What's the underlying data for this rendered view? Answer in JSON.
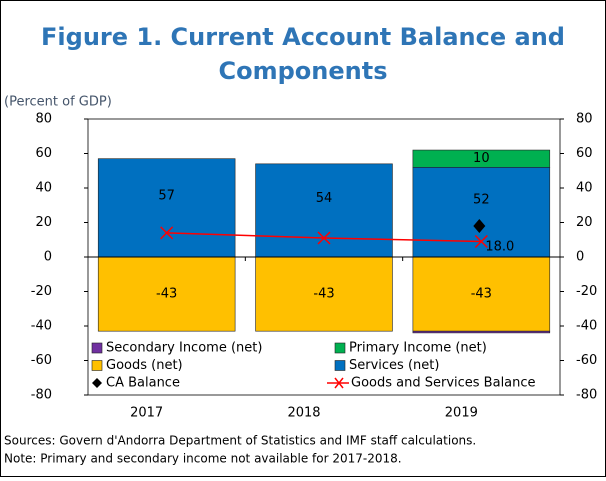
{
  "chart_data": {
    "type": "bar",
    "title": "Figure 1. Current Account Balance and Components",
    "subtitle": "(Percent of GDP)",
    "categories": [
      "2017",
      "2018",
      "2019"
    ],
    "series": [
      {
        "name": "Secondary Income (net)",
        "color": "#7030a0",
        "kind": "bar",
        "values": [
          null,
          null,
          -1
        ]
      },
      {
        "name": "Primary Income (net)",
        "color": "#00b050",
        "kind": "bar",
        "labels": true,
        "values": [
          null,
          null,
          10
        ]
      },
      {
        "name": "Goods (net)",
        "color": "#ffc000",
        "kind": "bar",
        "labels": true,
        "values": [
          -43,
          -43,
          -43
        ]
      },
      {
        "name": "Services (net)",
        "color": "#0070c0",
        "kind": "bar",
        "labels": true,
        "values": [
          57,
          54,
          52
        ]
      },
      {
        "name": "CA Balance",
        "color": "#000000",
        "kind": "marker",
        "values": [
          null,
          null,
          18
        ],
        "value_labels": [
          null,
          null,
          "18.0"
        ]
      },
      {
        "name": "Goods and Services Balance",
        "color": "#ff0000",
        "kind": "line",
        "values": [
          14,
          11,
          9
        ]
      }
    ],
    "ylim": [
      -80,
      80
    ],
    "yticks": [
      -80,
      -60,
      -40,
      -20,
      0,
      20,
      40,
      60,
      80
    ],
    "y2lim": [
      -80,
      80
    ],
    "y2ticks": [
      -80,
      -60,
      -40,
      -20,
      0,
      20,
      40,
      60,
      80
    ],
    "notes": [
      "Sources: Govern d'Andorra Department of Statistics  and IMF staff calculations.",
      "Note: Primary and secondary income not available for 2017-2018."
    ]
  }
}
